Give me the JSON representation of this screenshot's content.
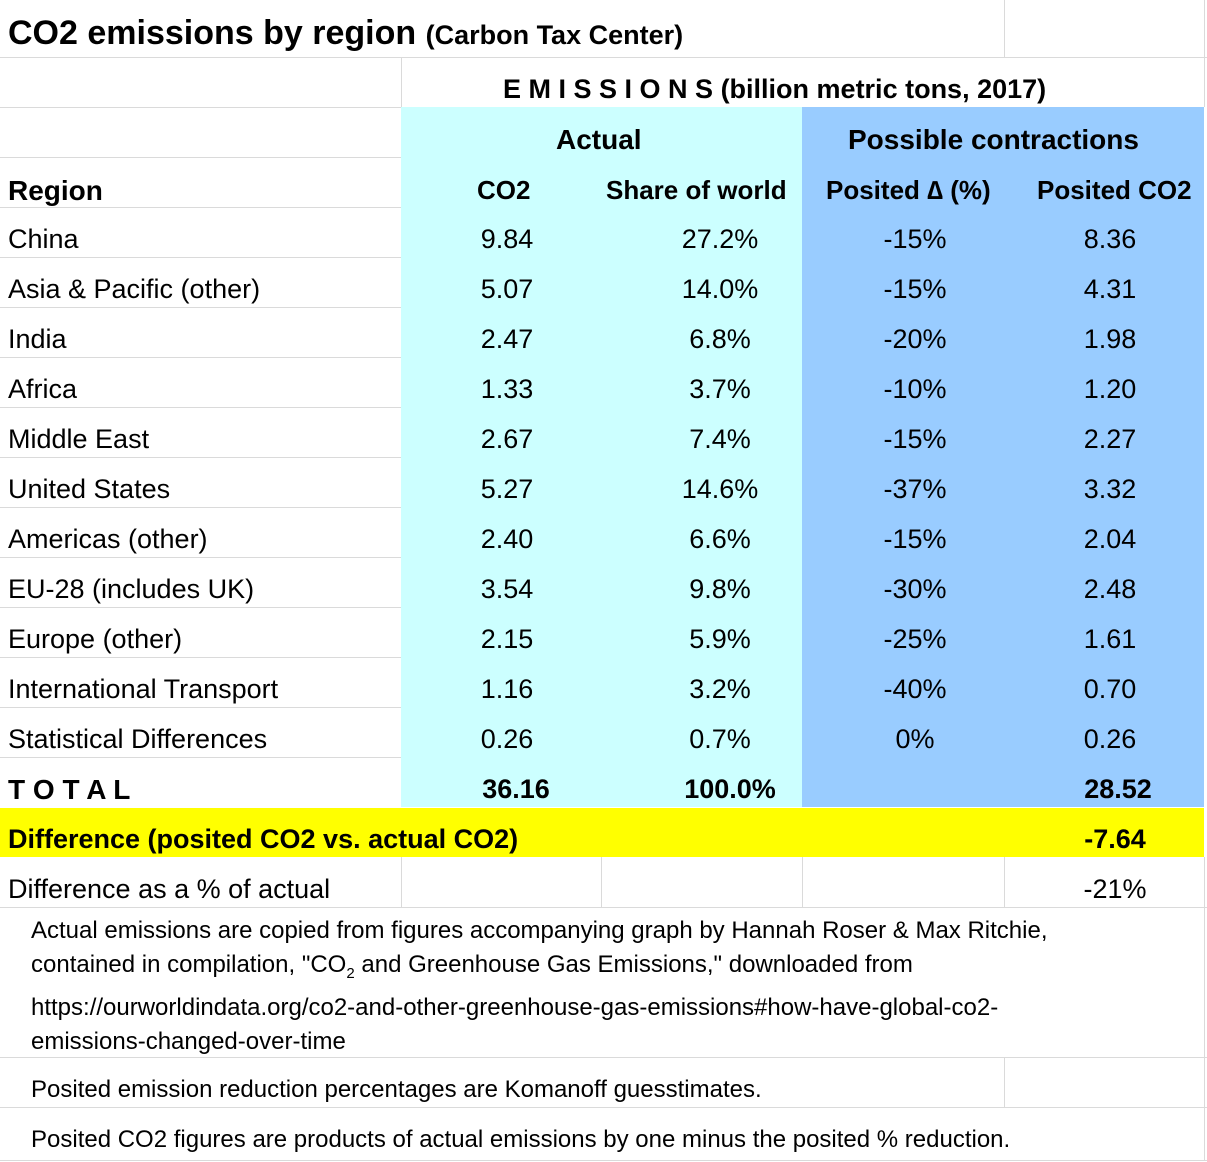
{
  "title": "CO2 emissions by region",
  "subtitle": "(Carbon Tax Center)",
  "emissions_spaced": "E M I S S I O N S",
  "emissions_units": "(billion metric tons, 2017)",
  "group_actual": "Actual",
  "group_possible": "Possible contractions",
  "columns": {
    "region": "Region",
    "co2": "CO2",
    "share": "Share of world",
    "posited_delta": "Posited ∆ (%)",
    "posited_co2": "Posited CO2"
  },
  "rows": [
    {
      "region": "China",
      "co2": "9.84",
      "share": "27.2%",
      "delta": "-15%",
      "posited": "8.36"
    },
    {
      "region": "Asia & Pacific (other)",
      "co2": "5.07",
      "share": "14.0%",
      "delta": "-15%",
      "posited": "4.31"
    },
    {
      "region": "India",
      "co2": "2.47",
      "share": "6.8%",
      "delta": "-20%",
      "posited": "1.98"
    },
    {
      "region": "Africa",
      "co2": "1.33",
      "share": "3.7%",
      "delta": "-10%",
      "posited": "1.20"
    },
    {
      "region": "Middle East",
      "co2": "2.67",
      "share": "7.4%",
      "delta": "-15%",
      "posited": "2.27"
    },
    {
      "region": "United States",
      "co2": "5.27",
      "share": "14.6%",
      "delta": "-37%",
      "posited": "3.32"
    },
    {
      "region": "Americas (other)",
      "co2": "2.40",
      "share": "6.6%",
      "delta": "-15%",
      "posited": "2.04"
    },
    {
      "region": "EU-28 (includes UK)",
      "co2": "3.54",
      "share": "9.8%",
      "delta": "-30%",
      "posited": "2.48"
    },
    {
      "region": "Europe (other)",
      "co2": "2.15",
      "share": "5.9%",
      "delta": "-25%",
      "posited": "1.61"
    },
    {
      "region": "International Transport",
      "co2": "1.16",
      "share": "3.2%",
      "delta": "-40%",
      "posited": "0.70"
    },
    {
      "region": "Statistical Differences",
      "co2": "0.26",
      "share": "0.7%",
      "delta": "0%",
      "posited": "0.26"
    }
  ],
  "total": {
    "label": "T O T A L",
    "co2": "36.16",
    "share": "100.0%",
    "posited": "28.52"
  },
  "difference": {
    "label": "Difference (posited CO2 vs. actual CO2)",
    "value": "-7.64"
  },
  "difference_pct": {
    "label": "Difference as a % of actual",
    "value": "-21%"
  },
  "notes": {
    "source_line1": "Actual emissions are copied from figures accompanying graph by Hannah Roser & Max Ritchie,",
    "source_line2_pre": "contained in compilation, \"CO",
    "source_line2_sub": "2",
    "source_line2_post": " and Greenhouse Gas Emissions,\" downloaded from",
    "source_line3": "https://ourworldindata.org/co2-and-other-greenhouse-gas-emissions#how-have-global-co2-",
    "source_line4": "emissions-changed-over-time",
    "komanoff": "Posited emission reduction percentages are Komanoff guesstimates.",
    "products": "Posited CO2 figures are products of actual emissions by one minus the posited % reduction."
  },
  "colors": {
    "actual_bg": "#ccffff",
    "possible_bg": "#99ccff",
    "difference_bg": "#ffff00",
    "gridline": "#dadada"
  }
}
